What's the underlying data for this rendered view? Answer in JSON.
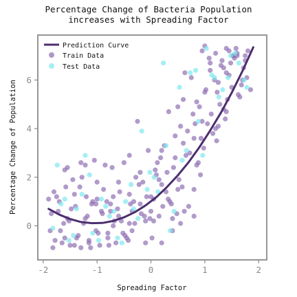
{
  "chart_data": {
    "type": "scatter",
    "title": [
      "Percentage Change of Bacteria Population",
      "increases with Spreading Factor"
    ],
    "xlabel": "Spreading Factor",
    "ylabel": "Percentage Change of Population",
    "xlim": [
      -2.1,
      2.15
    ],
    "ylim": [
      -1.4,
      7.85
    ],
    "xticks": [
      -2,
      -1,
      0,
      1,
      2
    ],
    "yticks": [
      0,
      2,
      4,
      6
    ],
    "grid": false,
    "legend_position": "top-left",
    "colors": {
      "prediction": "#4b2e6e",
      "train": "#8c6bb1",
      "test": "#7ee8ee",
      "frame": "#8a8a8a"
    },
    "series": [
      {
        "name": "Prediction Curve",
        "kind": "line",
        "x": [
          -1.9,
          -1.7,
          -1.5,
          -1.3,
          -1.1,
          -0.9,
          -0.7,
          -0.5,
          -0.3,
          -0.1,
          0.1,
          0.3,
          0.5,
          0.7,
          0.9,
          1.1,
          1.3,
          1.5,
          1.7,
          1.9
        ],
        "y": [
          0.7,
          0.46,
          0.28,
          0.16,
          0.11,
          0.12,
          0.2,
          0.35,
          0.56,
          0.84,
          1.18,
          1.6,
          2.08,
          2.62,
          3.24,
          3.92,
          4.66,
          5.48,
          6.37,
          7.35
        ]
      },
      {
        "name": "Train Data",
        "kind": "scatter",
        "x": [
          -1.87,
          -1.8,
          -1.72,
          -1.65,
          -1.6,
          -1.55,
          -1.5,
          -1.45,
          -1.4,
          -1.35,
          -1.3,
          -1.25,
          -1.2,
          -1.15,
          -1.1,
          -1.05,
          -1.0,
          -0.95,
          -0.9,
          -0.85,
          -0.8,
          -0.75,
          -0.7,
          -0.65,
          -0.6,
          -0.55,
          -0.5,
          -0.45,
          -0.4,
          -0.35,
          -0.3,
          -0.25,
          -0.2,
          -0.15,
          -0.1,
          -0.05,
          0.0,
          0.05,
          0.1,
          0.15,
          0.2,
          0.25,
          0.3,
          0.35,
          0.4,
          0.45,
          0.5,
          0.55,
          0.6,
          0.65,
          0.7,
          0.75,
          0.8,
          0.85,
          0.9,
          0.95,
          1.0,
          1.05,
          1.1,
          1.15,
          1.2,
          1.25,
          1.3,
          1.35,
          1.4,
          1.45,
          1.5,
          1.55,
          1.6,
          1.65,
          1.7,
          1.75,
          1.8,
          1.85,
          -1.85,
          -1.75,
          -1.68,
          -1.58,
          -1.48,
          -1.38,
          -1.28,
          -1.18,
          -1.08,
          -0.98,
          -0.88,
          -0.78,
          -0.68,
          -0.58,
          -0.48,
          -0.38,
          -0.28,
          -0.18,
          -0.08,
          0.02,
          0.12,
          0.22,
          0.32,
          0.42,
          0.52,
          0.62,
          0.72,
          0.82,
          0.92,
          1.02,
          1.12,
          1.22,
          1.32,
          1.42,
          1.52,
          1.62,
          1.72,
          -1.82,
          -1.62,
          -1.42,
          -1.22,
          -1.02,
          -0.82,
          -0.62,
          -0.42,
          -0.22,
          -0.02,
          0.18,
          0.38,
          0.58,
          0.78,
          0.98,
          1.18,
          1.38,
          1.58,
          1.78,
          -1.78,
          -1.52,
          -1.32,
          -1.12,
          -0.92,
          -0.72,
          -0.52,
          -0.32,
          -0.12,
          0.08,
          0.28,
          0.48,
          0.68,
          0.88,
          1.08,
          1.28,
          1.48,
          1.68,
          -1.7,
          -1.42,
          -1.22,
          -1.02,
          -0.8,
          -0.6,
          -0.4,
          -0.2,
          0.0,
          0.2,
          0.4,
          0.6,
          0.8,
          1.0,
          1.2,
          1.4,
          1.6,
          -1.9,
          -1.6,
          -1.3,
          -1.0,
          -0.7,
          -0.4,
          -0.1,
          0.2,
          0.5,
          0.8,
          1.1,
          1.4,
          -1.55,
          -1.15,
          -0.75,
          -0.35,
          0.05,
          0.45,
          0.85,
          1.25,
          1.45,
          0.15,
          0.55,
          0.95,
          1.35,
          1.75,
          0.33,
          0.63,
          0.93,
          1.23,
          1.53
        ],
        "y": [
          -0.2,
          1.4,
          0.6,
          -0.7,
          2.3,
          0.3,
          -0.8,
          1.9,
          0.8,
          -0.4,
          2.6,
          0.1,
          1.2,
          -0.6,
          0.9,
          2.7,
          1.1,
          -0.8,
          0.5,
          2.5,
          -0.3,
          0.9,
          1.2,
          -0.7,
          0.4,
          0.2,
          2.6,
          -0.5,
          1.3,
          0.6,
          0.1,
          4.3,
          0.9,
          1.8,
          -0.7,
          3.1,
          1.2,
          0.2,
          2.1,
          0.4,
          1.7,
          3.3,
          2.2,
          1.0,
          0.3,
          3.7,
          1.5,
          4.1,
          3.4,
          2.9,
          0.8,
          6.1,
          3.6,
          5.1,
          4.9,
          7.2,
          5.5,
          4.2,
          6.4,
          3.8,
          7.1,
          5.9,
          6.6,
          4.8,
          7.3,
          6.2,
          5.7,
          6.9,
          7.1,
          5.3,
          6.0,
          6.8,
          7.2,
          5.6,
          0.5,
          1.2,
          -0.2,
          1.6,
          0.7,
          -0.5,
          2.0,
          0.4,
          1.0,
          -0.3,
          1.5,
          -0.8,
          0.2,
          1.4,
          -0.4,
          0.9,
          2.0,
          0.5,
          1.2,
          -0.5,
          2.6,
          0.8,
          1.1,
          2.4,
          1.9,
          0.6,
          3.0,
          4.2,
          2.1,
          5.6,
          4.6,
          3.5,
          6.8,
          5.2,
          7.0,
          5.4,
          6.5,
          -0.9,
          0.1,
          1.3,
          2.5,
          -0.2,
          1.0,
          0.7,
          -0.6,
          1.7,
          0.3,
          2.8,
          0.9,
          1.6,
          4.6,
          3.2,
          6.0,
          4.4,
          7.3,
          6.1,
          -0.6,
          0.2,
          1.6,
          -0.9,
          0.6,
          2.4,
          -0.3,
          1.0,
          0.4,
          2.3,
          1.4,
          0.5,
          3.9,
          2.6,
          6.9,
          5.0,
          6.7,
          5.8,
          1.0,
          -0.8,
          0.3,
          0.9,
          -0.5,
          1.8,
          0.1,
          2.2,
          0.6,
          3.1,
          -0.2,
          5.2,
          1.5,
          7.4,
          4.0,
          6.3,
          7.0,
          1.1,
          -0.5,
          -0.9,
          1.8,
          0.0,
          2.9,
          0.2,
          -0.7,
          4.9,
          0.4,
          6.7,
          4.7,
          2.4,
          -0.7,
          0.6,
          -0.2,
          1.1,
          2.8,
          2.5,
          4.1,
          7.2,
          1.9,
          0.1,
          4.3,
          6.5,
          7.0,
          4.7,
          6.3,
          3.6,
          5.5,
          7.0
        ]
      },
      {
        "name": "Test Data",
        "kind": "scatter",
        "x": [
          -1.82,
          -1.67,
          -1.52,
          -1.38,
          -1.22,
          -1.08,
          -0.92,
          -0.77,
          -0.62,
          -0.47,
          -0.32,
          -0.17,
          -0.02,
          0.13,
          0.28,
          0.43,
          0.58,
          0.73,
          0.88,
          1.03,
          1.18,
          1.33,
          1.48,
          1.63,
          1.78,
          -1.74,
          -1.44,
          -1.14,
          -0.84,
          -0.54,
          -0.24,
          0.06,
          0.36,
          0.66,
          0.96,
          1.26,
          1.56,
          -1.6,
          -1.28,
          -0.97,
          -0.69,
          -0.37,
          -0.07,
          0.23,
          0.53,
          0.83,
          1.13,
          1.43,
          1.73
        ],
        "y": [
          -0.1,
          0.9,
          -0.6,
          0.7,
          2.9,
          -0.3,
          1.1,
          0.4,
          -0.5,
          1.0,
          0.7,
          3.9,
          2.2,
          1.4,
          3.3,
          0.6,
          2.7,
          6.3,
          4.3,
          7.3,
          6.1,
          5.6,
          7.0,
          6.7,
          5.7,
          2.5,
          -0.4,
          2.1,
          0.8,
          -0.7,
          0.3,
          2.0,
          -0.2,
          3.1,
          2.9,
          5.3,
          7.1,
          1.1,
          1.3,
          -0.6,
          0.6,
          1.7,
          1.5,
          6.7,
          5.7,
          6.4,
          6.2,
          6.1,
          6.0
        ]
      }
    ]
  }
}
